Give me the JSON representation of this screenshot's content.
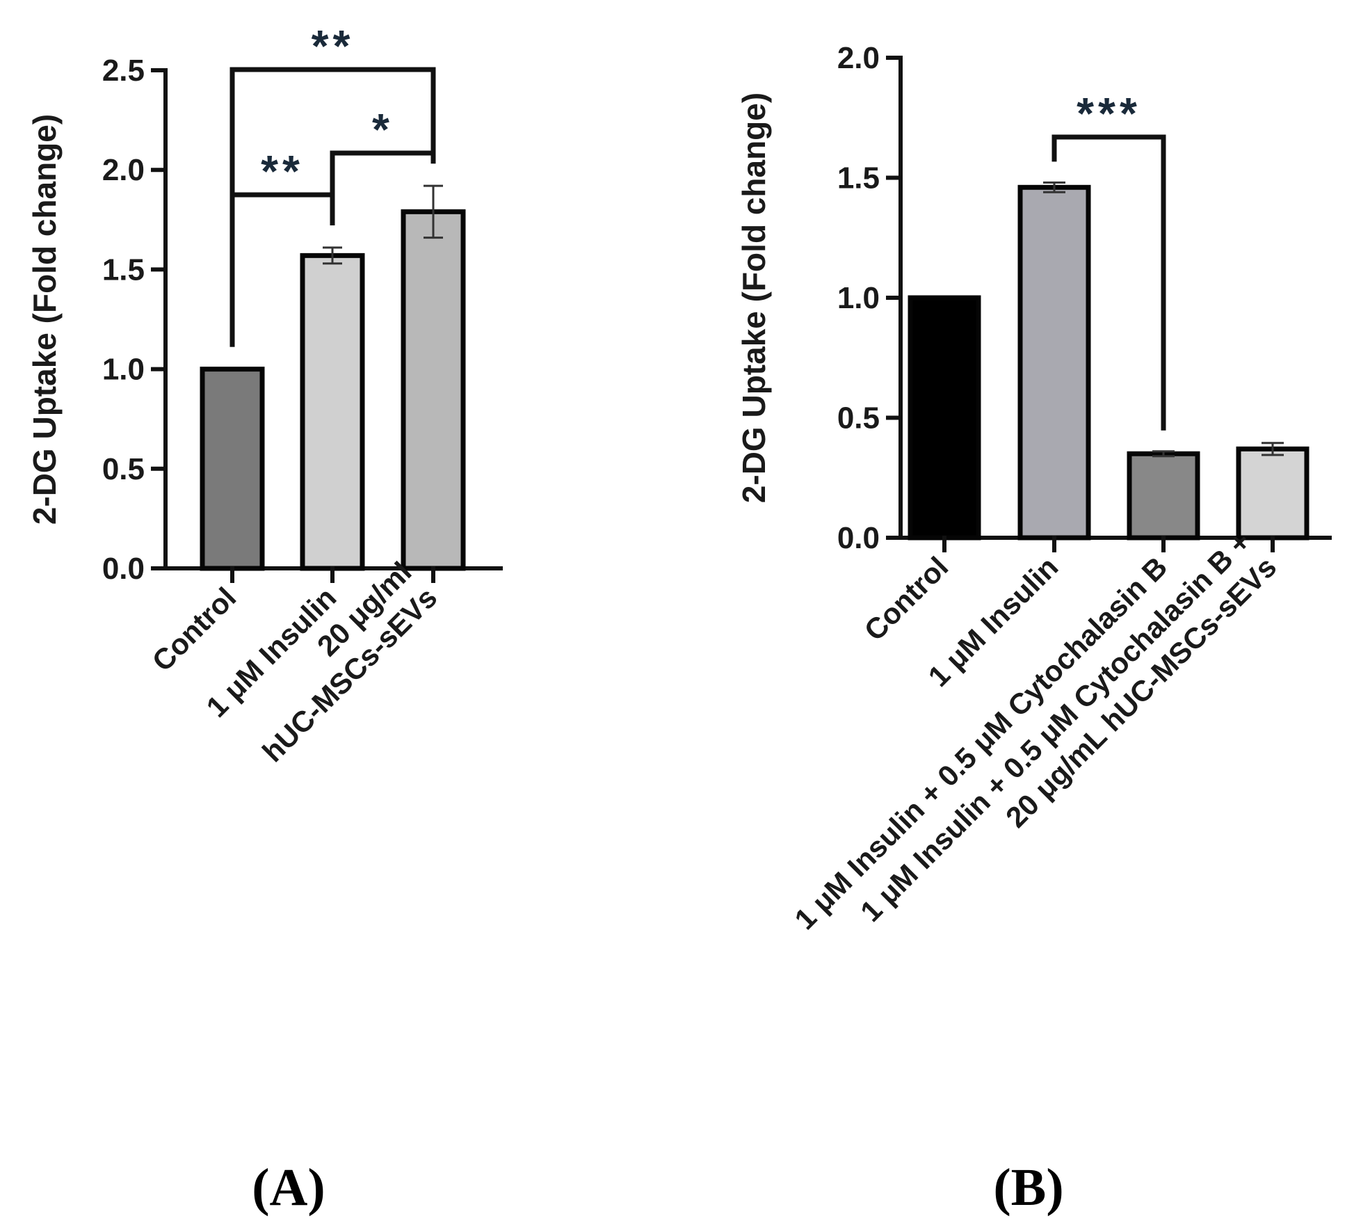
{
  "chart_data": [
    {
      "type": "bar",
      "panel_label": "(A)",
      "ylabel": "2-DG Uptake (Fold change)",
      "xlabel": "",
      "ylim": [
        0,
        2.5
      ],
      "yticks": [
        "0.0",
        "0.5",
        "1.0",
        "1.5",
        "2.0",
        "2.5"
      ],
      "categories": [
        [
          "Control"
        ],
        [
          "1 μM Insulin"
        ],
        [
          "20 μg/ml",
          "hUC-MSCs-sEVs"
        ]
      ],
      "values": [
        1.0,
        1.57,
        1.79
      ],
      "errors": [
        0.0,
        0.04,
        0.13
      ],
      "colors": [
        "#7a7a7a",
        "#d0d0d0",
        "#b8b8b8"
      ],
      "significance": [
        {
          "from": 0,
          "to": 1,
          "label": "**"
        },
        {
          "from": 1,
          "to": 2,
          "label": "*"
        },
        {
          "from": 0,
          "to": 2,
          "label": "**"
        }
      ]
    },
    {
      "type": "bar",
      "panel_label": "(B)",
      "ylabel": "2-DG Uptake (Fold change)",
      "xlabel": "",
      "ylim": [
        0,
        2.0
      ],
      "yticks": [
        "0.0",
        "0.5",
        "1.0",
        "1.5",
        "2.0"
      ],
      "categories": [
        [
          "Control"
        ],
        [
          "1 μM Insulin"
        ],
        [
          "1 μM Insulin + 0.5 μM Cytochalasin B"
        ],
        [
          "1 μM Insulin + 0.5 μM Cytochalasin B +",
          "20 μg/mL hUC-MSCs-sEVs"
        ]
      ],
      "values": [
        1.0,
        1.46,
        0.35,
        0.37
      ],
      "errors": [
        0.0,
        0.02,
        0.01,
        0.025
      ],
      "colors": [
        "#000000",
        "#a9a9b0",
        "#888888",
        "#d4d4d4"
      ],
      "significance": [
        {
          "from": 1,
          "to": 2,
          "label": "***"
        }
      ]
    }
  ]
}
